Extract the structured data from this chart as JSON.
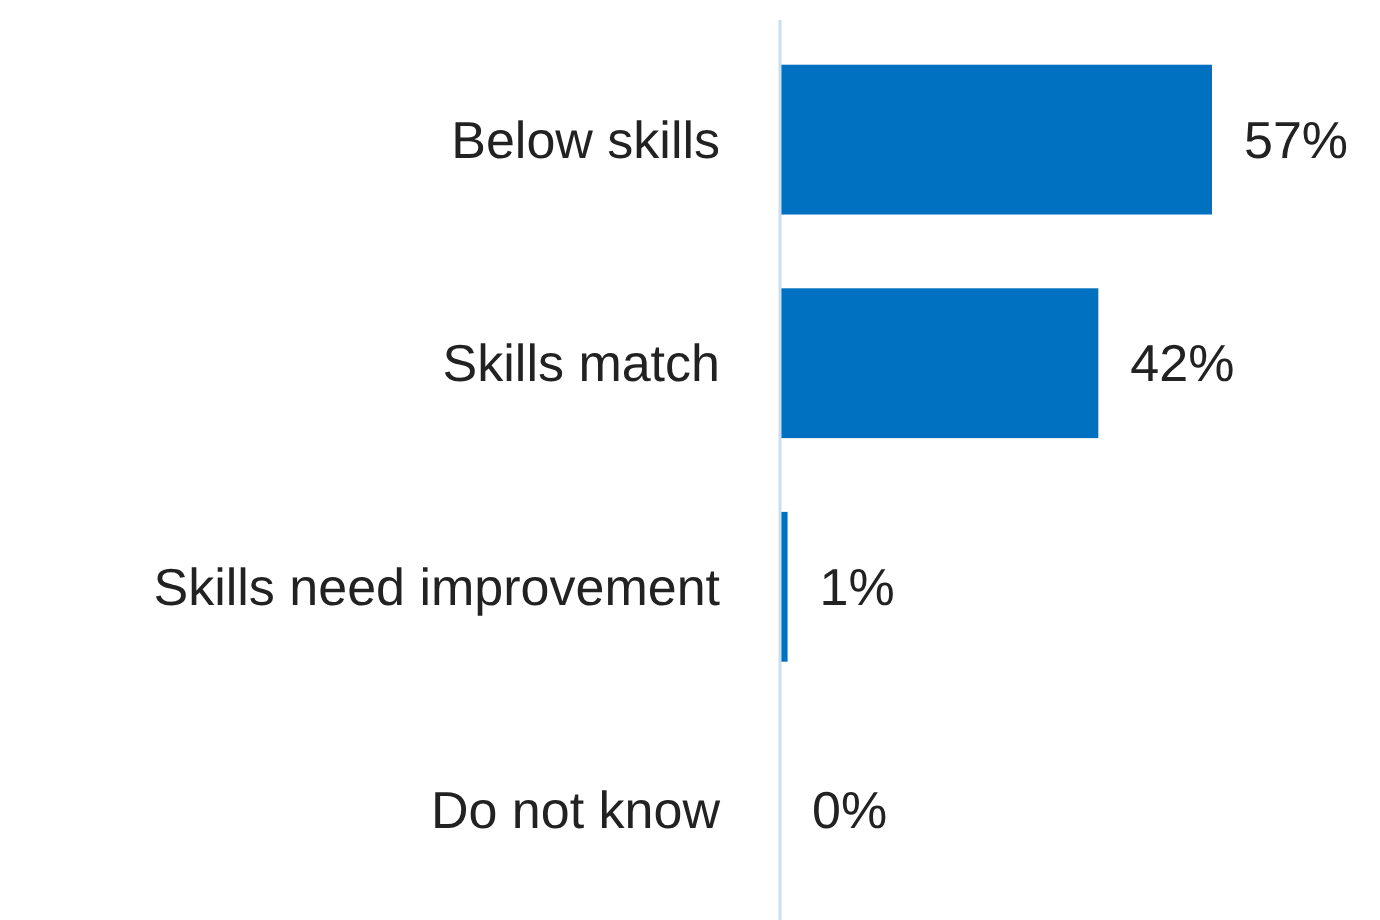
{
  "chart_data": {
    "type": "bar",
    "orientation": "horizontal",
    "categories": [
      "Below skills",
      "Skills match",
      "Skills need improvement",
      "Do not know"
    ],
    "values": [
      57,
      42,
      1,
      0
    ],
    "color": "#0070c0",
    "value_labels": [
      "57%",
      "42%",
      "1%",
      "0%"
    ]
  }
}
